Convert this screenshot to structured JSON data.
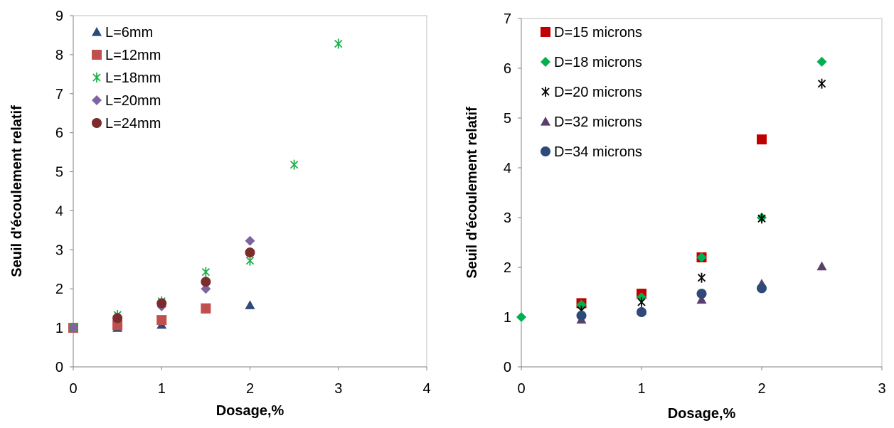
{
  "chart_data": [
    {
      "type": "scatter",
      "xlabel": "Dosage,%",
      "ylabel": "Seuil d'écoulement relatif",
      "xlim": [
        0,
        4
      ],
      "ylim": [
        0,
        9
      ],
      "xticks": [
        0,
        1,
        2,
        3,
        4
      ],
      "yticks": [
        0,
        1,
        2,
        3,
        4,
        5,
        6,
        7,
        8,
        9
      ],
      "grid": false,
      "legend_position": "top-left",
      "series": [
        {
          "name": "L=6mm",
          "marker": "triangle",
          "color": "#2E4A7A",
          "points": [
            [
              0,
              1.0
            ],
            [
              0.5,
              1.0
            ],
            [
              1,
              1.08
            ],
            [
              1.5,
              1.47
            ],
            [
              2,
              1.58
            ]
          ]
        },
        {
          "name": "L=12mm",
          "marker": "square",
          "color": "#C0504D",
          "points": [
            [
              0,
              1.0
            ],
            [
              0.5,
              1.07
            ],
            [
              1,
              1.2
            ],
            [
              1.5,
              1.5
            ]
          ]
        },
        {
          "name": "L=18mm",
          "marker": "star",
          "color": "#1FAF4B",
          "points": [
            [
              0,
              1.0
            ],
            [
              0.5,
              1.33
            ],
            [
              1,
              1.68
            ],
            [
              1.5,
              2.43
            ],
            [
              2,
              2.72
            ],
            [
              2.5,
              5.18
            ],
            [
              3,
              8.28
            ]
          ]
        },
        {
          "name": "L=20mm",
          "marker": "diamond",
          "color": "#8064A2",
          "points": [
            [
              0,
              1.0
            ],
            [
              0.5,
              1.28
            ],
            [
              1,
              1.55
            ],
            [
              1.5,
              2.0
            ],
            [
              2,
              3.23
            ]
          ]
        },
        {
          "name": "L=24mm",
          "marker": "circle",
          "color": "#7B2C2C",
          "points": [
            [
              0.5,
              1.25
            ],
            [
              1,
              1.63
            ],
            [
              1.5,
              2.18
            ],
            [
              2,
              2.93
            ]
          ]
        }
      ]
    },
    {
      "type": "scatter",
      "xlabel": "Dosage,%",
      "ylabel": "Seuil d'écoulement relatif",
      "xlim": [
        0,
        3
      ],
      "ylim": [
        0,
        7
      ],
      "xticks": [
        0,
        1,
        2,
        3
      ],
      "yticks": [
        0,
        1,
        2,
        3,
        4,
        5,
        6,
        7
      ],
      "grid": false,
      "legend_position": "top-left",
      "series": [
        {
          "name": "D=15 microns",
          "marker": "square",
          "color": "#C00000",
          "points": [
            [
              0.5,
              1.28
            ],
            [
              1,
              1.47
            ],
            [
              1.5,
              2.2
            ],
            [
              2,
              4.57
            ]
          ]
        },
        {
          "name": "D=18 microns",
          "marker": "diamond",
          "color": "#00B050",
          "points": [
            [
              0,
              1.0
            ],
            [
              0.5,
              1.25
            ],
            [
              1,
              1.4
            ],
            [
              1.5,
              2.2
            ],
            [
              2,
              3.0
            ],
            [
              2.5,
              6.13
            ]
          ]
        },
        {
          "name": "D=20 microns",
          "marker": "star",
          "color": "#000000",
          "points": [
            [
              0.5,
              1.13
            ],
            [
              1,
              1.3
            ],
            [
              1.5,
              1.79
            ],
            [
              2,
              2.98
            ],
            [
              2.5,
              5.69
            ]
          ]
        },
        {
          "name": "D=32 microns",
          "marker": "triangle",
          "color": "#5B3F6B",
          "points": [
            [
              0.5,
              0.95
            ],
            [
              1,
              1.13
            ],
            [
              1.5,
              1.35
            ],
            [
              2,
              1.67
            ],
            [
              2.5,
              2.02
            ]
          ]
        },
        {
          "name": "D=34 microns",
          "marker": "circle",
          "color": "#2E4A7A",
          "points": [
            [
              0.5,
              1.03
            ],
            [
              1,
              1.1
            ],
            [
              1.5,
              1.47
            ],
            [
              2,
              1.58
            ]
          ]
        }
      ]
    }
  ]
}
